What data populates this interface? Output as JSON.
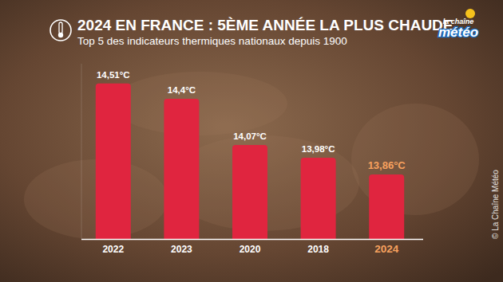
{
  "chart_data": {
    "type": "bar",
    "title": "2024 EN FRANCE : 5ÈME ANNÉE LA PLUS CHAUDE",
    "subtitle": "Top 5 des indicateurs thermiques nationaux depuis 1900",
    "logo": [
      "la chaîne",
      "météo"
    ],
    "credit": "© La Chaîne Météo",
    "categories": [
      "2022",
      "2023",
      "2020",
      "2018",
      "2024"
    ],
    "values": [
      14.51,
      14.4,
      14.07,
      13.98,
      13.86
    ],
    "value_labels": [
      "14,51°C",
      "14,4°C",
      "14,07°C",
      "13,98°C",
      "13,86°C"
    ],
    "colors": [
      "#e0253f",
      "#e0253f",
      "#e0253f",
      "#e0253f",
      "#e0253f"
    ],
    "ylim": [
      13.4,
      14.65
    ],
    "yticks": [],
    "tick_labels": "x",
    "data_labels": true,
    "grid": false
  }
}
